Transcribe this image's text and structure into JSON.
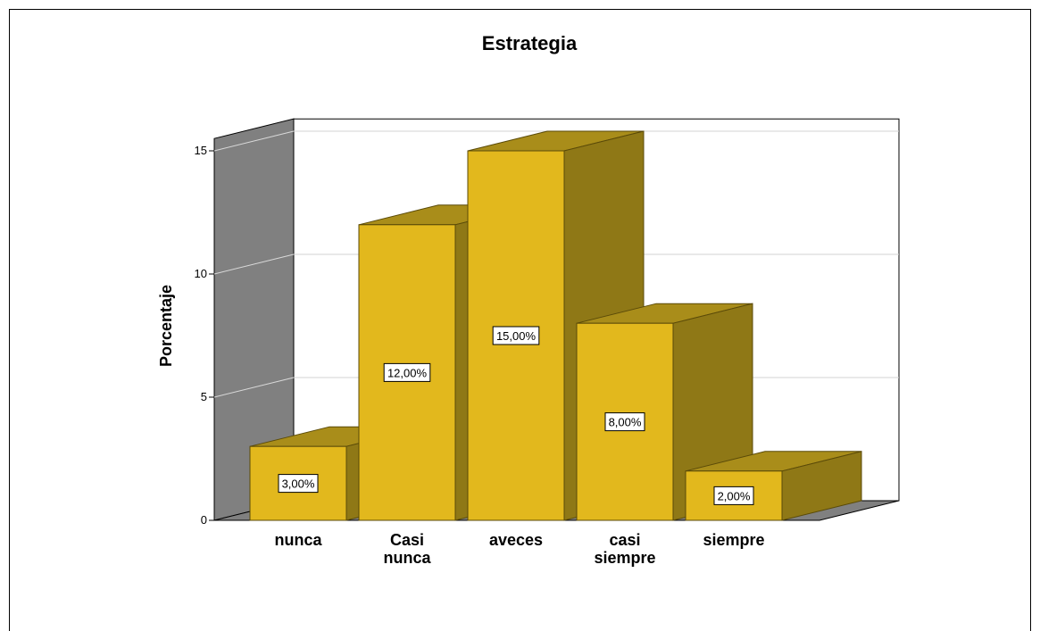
{
  "chart_data": {
    "type": "bar",
    "title": "Estrategia",
    "xlabel": "",
    "ylabel": "Porcentaje",
    "ylim": [
      0,
      15.5
    ],
    "yticks": [
      0,
      5,
      10,
      15
    ],
    "grid": true,
    "three_d": true,
    "categories": [
      "nunca",
      "Casi nunca",
      "aveces",
      "casi siempre",
      "siempre"
    ],
    "category_lines": [
      [
        "nunca"
      ],
      [
        "Casi",
        "nunca"
      ],
      [
        "aveces"
      ],
      [
        "casi",
        "siempre"
      ],
      [
        "siempre"
      ]
    ],
    "values": [
      3,
      12,
      15,
      8,
      2
    ],
    "data_labels": [
      "3,00%",
      "12,00%",
      "15,00%",
      "8,00%",
      "2,00%"
    ]
  },
  "colors": {
    "bar_front": "#e2b81d",
    "bar_side": "#8f7816",
    "bar_top": "#a98d1a",
    "bar_edge": "#5a4a08",
    "back_wall": "#ffffff",
    "side_wall": "#808080",
    "floor": "#808080",
    "grid": "#d3d3d3"
  }
}
